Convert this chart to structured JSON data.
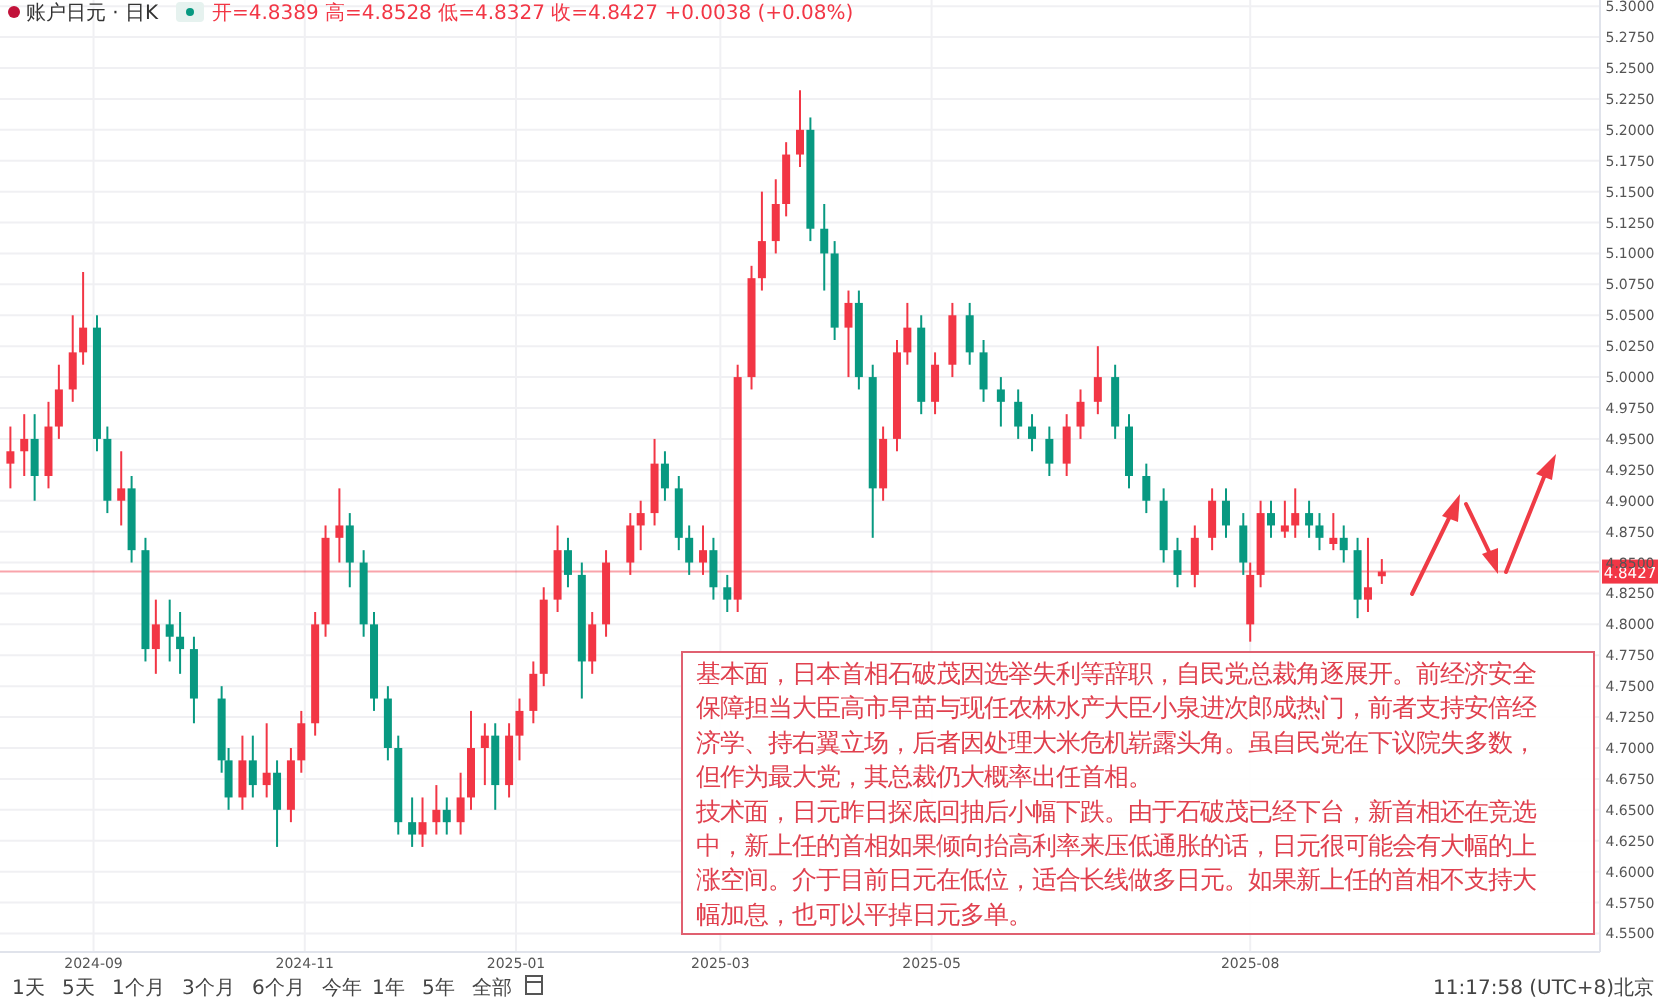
{
  "chart_data": {
    "type": "candlestick",
    "title": "账户日元 · 日K",
    "subtitle": "开=4.8389 高=4.8528 低=4.8327 收=4.8427 +0.0038 (+0.08%)",
    "x": [
      "2024-08-08",
      "2024-08-12",
      "2024-08-15",
      "2024-08-19",
      "2024-08-22",
      "2024-08-26",
      "2024-08-29",
      "2024-09-02",
      "2024-09-05",
      "2024-09-09",
      "2024-09-12",
      "2024-09-16",
      "2024-09-19",
      "2024-09-23",
      "2024-09-26",
      "2024-09-30",
      "2024-10-08",
      "2024-10-10",
      "2024-10-14",
      "2024-10-17",
      "2024-10-21",
      "2024-10-24",
      "2024-10-28",
      "2024-10-31",
      "2024-11-04",
      "2024-11-07",
      "2024-11-11",
      "2024-11-14",
      "2024-11-18",
      "2024-11-21",
      "2024-11-25",
      "2024-11-28",
      "2024-12-02",
      "2024-12-05",
      "2024-12-09",
      "2024-12-12",
      "2024-12-16",
      "2024-12-19",
      "2024-12-23",
      "2024-12-26",
      "2024-12-30",
      "2025-01-02",
      "2025-01-06",
      "2025-01-09",
      "2025-01-13",
      "2025-01-16",
      "2025-01-20",
      "2025-01-23",
      "2025-01-27",
      "2025-02-03",
      "2025-02-06",
      "2025-02-10",
      "2025-02-13",
      "2025-02-17",
      "2025-02-20",
      "2025-02-24",
      "2025-02-27",
      "2025-03-03",
      "2025-03-06",
      "2025-03-10",
      "2025-03-13",
      "2025-03-17",
      "2025-03-20",
      "2025-03-24",
      "2025-03-27",
      "2025-03-31",
      "2025-04-03",
      "2025-04-07",
      "2025-04-10",
      "2025-04-14",
      "2025-04-17",
      "2025-04-21",
      "2025-04-24",
      "2025-04-28",
      "2025-05-02",
      "2025-05-07",
      "2025-05-12",
      "2025-05-16",
      "2025-05-21",
      "2025-05-26",
      "2025-05-30",
      "2025-06-04",
      "2025-06-09",
      "2025-06-13",
      "2025-06-18",
      "2025-06-23",
      "2025-06-27",
      "2025-07-02",
      "2025-07-07",
      "2025-07-11",
      "2025-07-16",
      "2025-07-21",
      "2025-07-25",
      "2025-07-30",
      "2025-08-01",
      "2025-08-04",
      "2025-08-07",
      "2025-08-11",
      "2025-08-14",
      "2025-08-18",
      "2025-08-21",
      "2025-08-25",
      "2025-08-28",
      "2025-09-01",
      "2025-09-04",
      "2025-09-08"
    ],
    "ohlc": [
      [
        4.93,
        4.96,
        4.91,
        4.94
      ],
      [
        4.94,
        4.97,
        4.92,
        4.95
      ],
      [
        4.95,
        4.97,
        4.9,
        4.92
      ],
      [
        4.92,
        4.98,
        4.91,
        4.96
      ],
      [
        4.96,
        5.01,
        4.95,
        4.99
      ],
      [
        4.99,
        5.05,
        4.98,
        5.02
      ],
      [
        5.02,
        5.085,
        5.01,
        5.04
      ],
      [
        5.04,
        5.05,
        4.94,
        4.95
      ],
      [
        4.95,
        4.96,
        4.89,
        4.9
      ],
      [
        4.9,
        4.94,
        4.88,
        4.91
      ],
      [
        4.91,
        4.92,
        4.85,
        4.86
      ],
      [
        4.86,
        4.87,
        4.77,
        4.78
      ],
      [
        4.78,
        4.82,
        4.76,
        4.8
      ],
      [
        4.8,
        4.82,
        4.77,
        4.79
      ],
      [
        4.79,
        4.81,
        4.76,
        4.78
      ],
      [
        4.78,
        4.79,
        4.72,
        4.74
      ],
      [
        4.74,
        4.75,
        4.68,
        4.69
      ],
      [
        4.69,
        4.7,
        4.65,
        4.66
      ],
      [
        4.66,
        4.71,
        4.65,
        4.69
      ],
      [
        4.69,
        4.71,
        4.66,
        4.67
      ],
      [
        4.67,
        4.72,
        4.66,
        4.68
      ],
      [
        4.68,
        4.69,
        4.62,
        4.65
      ],
      [
        4.65,
        4.7,
        4.64,
        4.69
      ],
      [
        4.69,
        4.73,
        4.68,
        4.72
      ],
      [
        4.72,
        4.81,
        4.71,
        4.8
      ],
      [
        4.8,
        4.88,
        4.79,
        4.87
      ],
      [
        4.87,
        4.91,
        4.85,
        4.88
      ],
      [
        4.88,
        4.89,
        4.83,
        4.85
      ],
      [
        4.85,
        4.86,
        4.79,
        4.8
      ],
      [
        4.8,
        4.81,
        4.73,
        4.74
      ],
      [
        4.74,
        4.75,
        4.69,
        4.7
      ],
      [
        4.7,
        4.71,
        4.63,
        4.64
      ],
      [
        4.64,
        4.66,
        4.62,
        4.63
      ],
      [
        4.63,
        4.66,
        4.62,
        4.64
      ],
      [
        4.64,
        4.67,
        4.63,
        4.65
      ],
      [
        4.65,
        4.66,
        4.63,
        4.64
      ],
      [
        4.64,
        4.68,
        4.63,
        4.66
      ],
      [
        4.66,
        4.73,
        4.65,
        4.7
      ],
      [
        4.7,
        4.72,
        4.67,
        4.71
      ],
      [
        4.71,
        4.72,
        4.65,
        4.67
      ],
      [
        4.67,
        4.72,
        4.66,
        4.71
      ],
      [
        4.71,
        4.74,
        4.69,
        4.73
      ],
      [
        4.73,
        4.77,
        4.72,
        4.76
      ],
      [
        4.76,
        4.83,
        4.75,
        4.82
      ],
      [
        4.82,
        4.88,
        4.81,
        4.86
      ],
      [
        4.86,
        4.87,
        4.83,
        4.84
      ],
      [
        4.84,
        4.85,
        4.74,
        4.77
      ],
      [
        4.77,
        4.81,
        4.76,
        4.8
      ],
      [
        4.8,
        4.86,
        4.79,
        4.85
      ],
      [
        4.85,
        4.89,
        4.84,
        4.88
      ],
      [
        4.88,
        4.9,
        4.86,
        4.89
      ],
      [
        4.89,
        4.95,
        4.88,
        4.93
      ],
      [
        4.93,
        4.94,
        4.9,
        4.91
      ],
      [
        4.91,
        4.92,
        4.86,
        4.87
      ],
      [
        4.87,
        4.88,
        4.84,
        4.85
      ],
      [
        4.85,
        4.88,
        4.84,
        4.86
      ],
      [
        4.86,
        4.87,
        4.82,
        4.83
      ],
      [
        4.83,
        4.84,
        4.81,
        4.82
      ],
      [
        4.82,
        5.01,
        4.81,
        5.0
      ],
      [
        5.0,
        5.09,
        4.99,
        5.08
      ],
      [
        5.08,
        5.15,
        5.07,
        5.11
      ],
      [
        5.11,
        5.16,
        5.1,
        5.14
      ],
      [
        5.14,
        5.19,
        5.13,
        5.18
      ],
      [
        5.18,
        5.232,
        5.17,
        5.2
      ],
      [
        5.2,
        5.21,
        5.11,
        5.12
      ],
      [
        5.12,
        5.14,
        5.07,
        5.1
      ],
      [
        5.1,
        5.11,
        5.03,
        5.04
      ],
      [
        5.04,
        5.07,
        5.0,
        5.06
      ],
      [
        5.06,
        5.07,
        4.99,
        5.0
      ],
      [
        5.0,
        5.01,
        4.87,
        4.91
      ],
      [
        4.91,
        4.96,
        4.9,
        4.95
      ],
      [
        4.95,
        5.03,
        4.94,
        5.02
      ],
      [
        5.02,
        5.06,
        5.01,
        5.04
      ],
      [
        5.04,
        5.05,
        4.97,
        4.98
      ],
      [
        4.98,
        5.02,
        4.97,
        5.01
      ],
      [
        5.01,
        5.06,
        5.0,
        5.05
      ],
      [
        5.05,
        5.06,
        5.01,
        5.02
      ],
      [
        5.02,
        5.03,
        4.98,
        4.99
      ],
      [
        4.99,
        5.0,
        4.96,
        4.98
      ],
      [
        4.98,
        4.99,
        4.95,
        4.96
      ],
      [
        4.96,
        4.97,
        4.94,
        4.95
      ],
      [
        4.95,
        4.96,
        4.92,
        4.93
      ],
      [
        4.93,
        4.97,
        4.92,
        4.96
      ],
      [
        4.96,
        4.99,
        4.95,
        4.98
      ],
      [
        4.98,
        5.025,
        4.97,
        5.0
      ],
      [
        5.0,
        5.01,
        4.95,
        4.96
      ],
      [
        4.96,
        4.97,
        4.91,
        4.92
      ],
      [
        4.92,
        4.93,
        4.89,
        4.9
      ],
      [
        4.9,
        4.91,
        4.85,
        4.86
      ],
      [
        4.86,
        4.87,
        4.83,
        4.84
      ],
      [
        4.84,
        4.88,
        4.83,
        4.87
      ],
      [
        4.87,
        4.91,
        4.86,
        4.9
      ],
      [
        4.9,
        4.91,
        4.87,
        4.88
      ],
      [
        4.88,
        4.89,
        4.84,
        4.85
      ],
      [
        4.8,
        4.85,
        4.786,
        4.84
      ],
      [
        4.84,
        4.9,
        4.83,
        4.89
      ],
      [
        4.89,
        4.9,
        4.87,
        4.88
      ],
      [
        4.875,
        4.9,
        4.87,
        4.88
      ],
      [
        4.88,
        4.91,
        4.87,
        4.89
      ],
      [
        4.89,
        4.9,
        4.87,
        4.88
      ],
      [
        4.88,
        4.89,
        4.86,
        4.87
      ],
      [
        4.865,
        4.89,
        4.86,
        4.87
      ],
      [
        4.87,
        4.88,
        4.85,
        4.86
      ],
      [
        4.86,
        4.87,
        4.805,
        4.82
      ],
      [
        4.82,
        4.87,
        4.81,
        4.83
      ],
      [
        4.8389,
        4.8528,
        4.8327,
        4.8427
      ]
    ],
    "xlim": [
      "2024-08-05",
      "2025-11-10"
    ],
    "xticks": [
      "2024-09",
      "2024-11",
      "2025-01",
      "2025-03",
      "2025-05",
      "2025-08"
    ],
    "ylim": [
      4.535,
      5.305
    ],
    "yticks": [
      {
        "value": 4.55,
        "label": "4.5500"
      },
      {
        "value": 4.575,
        "label": "4.5750"
      },
      {
        "value": 4.6,
        "label": "4.6000"
      },
      {
        "value": 4.625,
        "label": "4.6250"
      },
      {
        "value": 4.65,
        "label": "4.6500"
      },
      {
        "value": 4.675,
        "label": "4.6750"
      },
      {
        "value": 4.7,
        "label": "4.7000"
      },
      {
        "value": 4.725,
        "label": "4.7250"
      },
      {
        "value": 4.75,
        "label": "4.7500"
      },
      {
        "value": 4.775,
        "label": "4.7750"
      },
      {
        "value": 4.8,
        "label": "4.8000"
      },
      {
        "value": 4.825,
        "label": "4.8250"
      },
      {
        "value": 4.85,
        "label": "4.8500"
      },
      {
        "value": 4.875,
        "label": "4.8750"
      },
      {
        "value": 4.9,
        "label": "4.9000"
      },
      {
        "value": 4.925,
        "label": "4.9250"
      },
      {
        "value": 4.95,
        "label": "4.9500"
      },
      {
        "value": 4.975,
        "label": "4.9750"
      },
      {
        "value": 5.0,
        "label": "5.0000"
      },
      {
        "value": 5.025,
        "label": "5.0250"
      },
      {
        "value": 5.05,
        "label": "5.0500"
      },
      {
        "value": 5.075,
        "label": "5.0750"
      },
      {
        "value": 5.1,
        "label": "5.1000"
      },
      {
        "value": 5.125,
        "label": "5.1250"
      },
      {
        "value": 5.15,
        "label": "5.1500"
      },
      {
        "value": 5.175,
        "label": "5.1750"
      },
      {
        "value": 5.2,
        "label": "5.2000"
      },
      {
        "value": 5.225,
        "label": "5.2250"
      },
      {
        "value": 5.25,
        "label": "5.2500"
      },
      {
        "value": 5.275,
        "label": "5.2750"
      },
      {
        "value": 5.3,
        "label": "5.3000"
      }
    ],
    "grid": true,
    "ref_lines": [
      {
        "axis": "y",
        "value": 4.8427,
        "label": "4.8427",
        "color": "#f23645"
      }
    ],
    "annotations": [
      "基本面，日本首相石破茂因选举失利等辞职，自民党总裁角逐展开。前经济安全保障担当大臣高市早苗与现任农林水产大臣小泉进次郎成热门，前者支持安倍经济学、持右翼立场，后者因处理大米危机崭露头角。虽自民党在下议院失多数，但作为最大党，其总裁仍大概率出任首相。",
      "技术面，日元昨日探底回抽后小幅下跌。由于石破茂已经下台，新首相还在竞选中，新上任的首相如果倾向抬高利率来压低通胀的话，日元很可能会有大幅的上涨空间。介于目前日元在低位，适合长线做多日元。如果新上任的首相不支持大幅加息，也可以平掉日元多单。",
      "1天",
      "5天",
      "1个月",
      "3个月",
      "6个月",
      "今年",
      "1年",
      "5年",
      "全部",
      "11:17:58 (UTC+8)北京"
    ]
  }
}
